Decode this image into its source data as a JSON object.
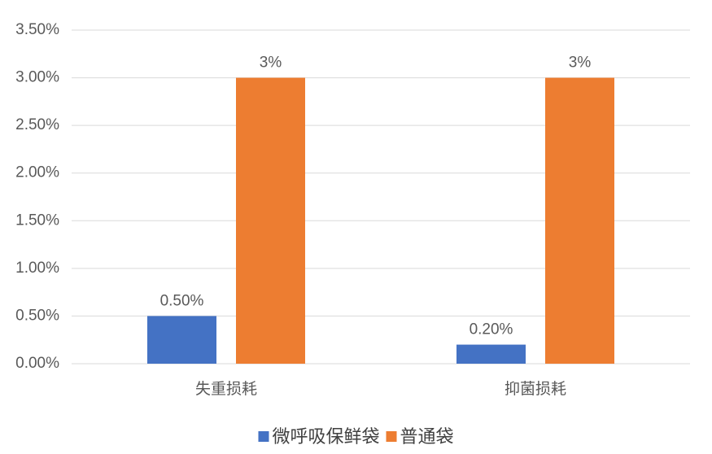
{
  "chart_data": {
    "type": "bar",
    "categories": [
      "失重损耗",
      "抑菌损耗"
    ],
    "series": [
      {
        "name": "微呼吸保鲜袋",
        "color": "#4472c4",
        "values": [
          0.5,
          0.2
        ],
        "value_labels": [
          "0.50%",
          "0.20%"
        ]
      },
      {
        "name": "普通袋",
        "color": "#ed7d31",
        "values": [
          3,
          3
        ],
        "value_labels": [
          "3%",
          "3%"
        ]
      }
    ],
    "ylim": [
      0,
      3.5
    ],
    "yticks": [
      {
        "value": 0,
        "label": "0.00%"
      },
      {
        "value": 0.5,
        "label": "0.50%"
      },
      {
        "value": 1,
        "label": "1.00%"
      },
      {
        "value": 1.5,
        "label": "1.50%"
      },
      {
        "value": 2,
        "label": "2.00%"
      },
      {
        "value": 2.5,
        "label": "2.50%"
      },
      {
        "value": 3,
        "label": "3.00%"
      },
      {
        "value": 3.5,
        "label": "3.50%"
      }
    ],
    "grid": true,
    "legend": "bottom"
  }
}
